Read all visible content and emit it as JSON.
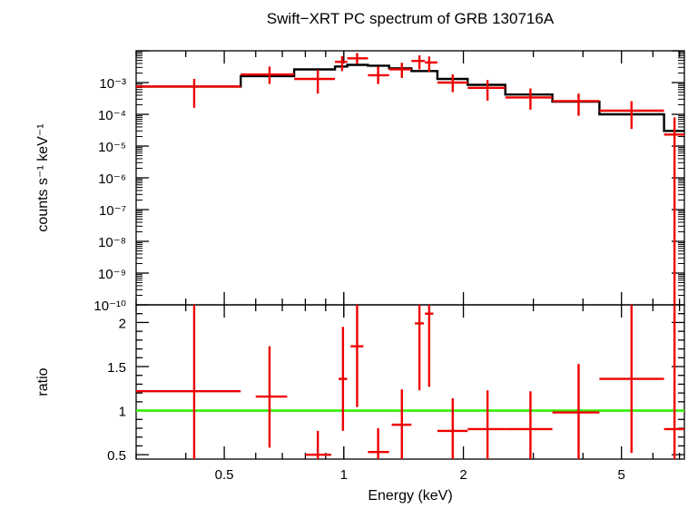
{
  "title": "Swift−XRT PC spectrum of GRB 130716A",
  "chart_data": [
    {
      "type": "step+errorbar",
      "panel": "spectrum",
      "xscale": "log",
      "yscale": "log",
      "xlim": [
        0.3,
        7.2
      ],
      "ylim": [
        1e-10,
        0.01
      ],
      "ylabel": "counts s⁻¹ keV⁻¹",
      "y_ticks": [
        {
          "label": "10⁻³",
          "value": 0.001
        },
        {
          "label": "10⁻⁴",
          "value": 0.0001
        },
        {
          "label": "10⁻⁵",
          "value": 1e-05
        },
        {
          "label": "10⁻⁶",
          "value": 1e-06
        },
        {
          "label": "10⁻⁷",
          "value": 1e-07
        },
        {
          "label": "10⁻⁸",
          "value": 1e-08
        },
        {
          "label": "10⁻⁹",
          "value": 1e-09
        },
        {
          "label": "10⁻¹⁰",
          "value": 1e-10
        }
      ],
      "model_color": "#000000",
      "data_color": "#ee0000",
      "model_steps": [
        {
          "x0": 0.3,
          "x1": 0.55,
          "y": 0.00075
        },
        {
          "x0": 0.55,
          "x1": 0.75,
          "y": 0.0016
        },
        {
          "x0": 0.75,
          "x1": 0.95,
          "y": 0.0026
        },
        {
          "x0": 0.95,
          "x1": 1.02,
          "y": 0.0032
        },
        {
          "x0": 1.02,
          "x1": 1.15,
          "y": 0.0036
        },
        {
          "x0": 1.15,
          "x1": 1.3,
          "y": 0.0034
        },
        {
          "x0": 1.3,
          "x1": 1.48,
          "y": 0.0028
        },
        {
          "x0": 1.48,
          "x1": 1.72,
          "y": 0.0023
        },
        {
          "x0": 1.72,
          "x1": 2.05,
          "y": 0.0013
        },
        {
          "x0": 2.05,
          "x1": 2.55,
          "y": 0.00085
        },
        {
          "x0": 2.55,
          "x1": 3.35,
          "y": 0.00042
        },
        {
          "x0": 3.35,
          "x1": 4.4,
          "y": 0.00025
        },
        {
          "x0": 4.4,
          "x1": 6.4,
          "y": 0.0001
        },
        {
          "x0": 6.4,
          "x1": 7.2,
          "y": 3e-05
        }
      ],
      "points": [
        {
          "x": 0.42,
          "xlo": 0.3,
          "xhi": 0.55,
          "y": 0.00075,
          "ylo": 0.00016,
          "yhi": 0.0013
        },
        {
          "x": 0.65,
          "xlo": 0.55,
          "xhi": 0.75,
          "y": 0.0018,
          "ylo": 0.0009,
          "yhi": 0.0032
        },
        {
          "x": 0.86,
          "xlo": 0.75,
          "xhi": 0.95,
          "y": 0.0013,
          "ylo": 0.00045,
          "yhi": 0.0025
        },
        {
          "x": 0.99,
          "xlo": 0.95,
          "xhi": 1.02,
          "y": 0.0045,
          "ylo": 0.0023,
          "yhi": 0.0068
        },
        {
          "x": 1.08,
          "xlo": 1.02,
          "xhi": 1.15,
          "y": 0.0058,
          "ylo": 0.0038,
          "yhi": 0.0085
        },
        {
          "x": 1.22,
          "xlo": 1.15,
          "xhi": 1.3,
          "y": 0.0017,
          "ylo": 0.0009,
          "yhi": 0.0032
        },
        {
          "x": 1.4,
          "xlo": 1.3,
          "xhi": 1.48,
          "y": 0.0026,
          "ylo": 0.0014,
          "yhi": 0.0042
        },
        {
          "x": 1.55,
          "xlo": 1.48,
          "xhi": 1.6,
          "y": 0.0048,
          "ylo": 0.0026,
          "yhi": 0.0072
        },
        {
          "x": 1.64,
          "xlo": 1.6,
          "xhi": 1.72,
          "y": 0.0043,
          "ylo": 0.0022,
          "yhi": 0.0066
        },
        {
          "x": 1.88,
          "xlo": 1.72,
          "xhi": 2.05,
          "y": 0.001,
          "ylo": 0.0005,
          "yhi": 0.0018
        },
        {
          "x": 2.3,
          "xlo": 2.05,
          "xhi": 2.55,
          "y": 0.00068,
          "ylo": 0.00027,
          "yhi": 0.0012
        },
        {
          "x": 2.95,
          "xlo": 2.55,
          "xhi": 3.35,
          "y": 0.00034,
          "ylo": 0.00014,
          "yhi": 0.00065
        },
        {
          "x": 3.9,
          "xlo": 3.35,
          "xhi": 4.4,
          "y": 0.00026,
          "ylo": 9e-05,
          "yhi": 0.00045
        },
        {
          "x": 5.3,
          "xlo": 4.4,
          "xhi": 6.4,
          "y": 0.00013,
          "ylo": 3.5e-05,
          "yhi": 0.00026
        },
        {
          "x": 6.8,
          "xlo": 6.4,
          "xhi": 7.2,
          "y": 2.3e-05,
          "ylo": 1e-10,
          "yhi": 8e-05
        }
      ]
    },
    {
      "type": "errorbar",
      "panel": "ratio",
      "xscale": "log",
      "xlim": [
        0.3,
        7.2
      ],
      "ylim": [
        0.45,
        2.2
      ],
      "ylabel": "ratio",
      "xlabel": "Energy (keV)",
      "y_ticks": [
        {
          "label": "0.5",
          "value": 0.5
        },
        {
          "label": "1",
          "value": 1
        },
        {
          "label": "1.5",
          "value": 1.5
        },
        {
          "label": "2",
          "value": 2
        }
      ],
      "x_ticks": [
        {
          "label": "0.5",
          "value": 0.5
        },
        {
          "label": "1",
          "value": 1
        },
        {
          "label": "2",
          "value": 2
        },
        {
          "label": "5",
          "value": 5
        }
      ],
      "reference_line": {
        "y": 1,
        "color": "#33ee00"
      },
      "data_color": "#ee0000",
      "points": [
        {
          "x": 0.42,
          "xlo": 0.3,
          "xhi": 0.55,
          "y": 1.22,
          "ylo": 0.45,
          "yhi": 2.2
        },
        {
          "x": 0.65,
          "xlo": 0.6,
          "xhi": 0.72,
          "y": 1.16,
          "ylo": 0.58,
          "yhi": 1.73
        },
        {
          "x": 0.86,
          "xlo": 0.8,
          "xhi": 0.93,
          "y": 0.5,
          "ylo": 0.45,
          "yhi": 0.77
        },
        {
          "x": 0.995,
          "xlo": 0.97,
          "xhi": 1.02,
          "y": 1.36,
          "ylo": 0.77,
          "yhi": 1.95
        },
        {
          "x": 1.08,
          "xlo": 1.04,
          "xhi": 1.12,
          "y": 1.73,
          "ylo": 1.04,
          "yhi": 2.2
        },
        {
          "x": 1.22,
          "xlo": 1.15,
          "xhi": 1.3,
          "y": 0.53,
          "ylo": 0.45,
          "yhi": 0.8
        },
        {
          "x": 1.4,
          "xlo": 1.32,
          "xhi": 1.48,
          "y": 0.84,
          "ylo": 0.45,
          "yhi": 1.24
        },
        {
          "x": 1.55,
          "xlo": 1.51,
          "xhi": 1.59,
          "y": 1.99,
          "ylo": 1.23,
          "yhi": 2.2
        },
        {
          "x": 1.64,
          "xlo": 1.6,
          "xhi": 1.68,
          "y": 2.1,
          "ylo": 1.27,
          "yhi": 2.2
        },
        {
          "x": 1.88,
          "xlo": 1.72,
          "xhi": 2.05,
          "y": 0.77,
          "ylo": 0.45,
          "yhi": 1.14
        },
        {
          "x": 2.3,
          "xlo": 2.05,
          "xhi": 2.55,
          "y": 0.79,
          "ylo": 0.45,
          "yhi": 1.23
        },
        {
          "x": 2.95,
          "xlo": 2.55,
          "xhi": 3.35,
          "y": 0.79,
          "ylo": 0.45,
          "yhi": 1.22
        },
        {
          "x": 3.9,
          "xlo": 3.35,
          "xhi": 4.4,
          "y": 0.98,
          "ylo": 0.45,
          "yhi": 1.53
        },
        {
          "x": 5.3,
          "xlo": 4.4,
          "xhi": 6.4,
          "y": 1.36,
          "ylo": 0.52,
          "yhi": 2.2
        },
        {
          "x": 6.8,
          "xlo": 6.4,
          "xhi": 7.2,
          "y": 0.79,
          "ylo": 0.45,
          "yhi": 2.2
        }
      ]
    }
  ]
}
